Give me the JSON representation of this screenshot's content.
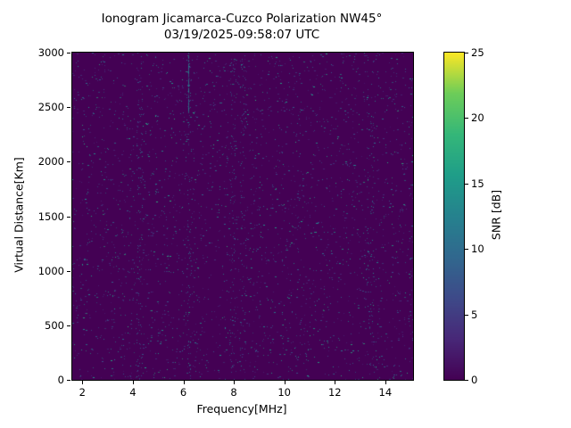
{
  "chart_data": {
    "type": "heatmap",
    "title": "Ionogram Jicamarca-Cuzco Polarization NW45°",
    "subtitle": "03/19/2025-09:58:07 UTC",
    "xlabel": "Frequency[MHz]",
    "ylabel": "Virtual Distance[Km]",
    "xlim": [
      1.6,
      15.1
    ],
    "ylim": [
      0,
      3000
    ],
    "x_ticks": [
      2,
      4,
      6,
      8,
      10,
      12,
      14
    ],
    "y_ticks": [
      0,
      500,
      1000,
      1500,
      2000,
      2500,
      3000
    ],
    "colorbar": {
      "label": "SNR [dB]",
      "ticks": [
        0,
        5,
        10,
        15,
        20,
        25
      ],
      "vmin": 0,
      "vmax": 25
    },
    "colormap": {
      "name": "viridis",
      "stops": [
        {
          "t": 0.0,
          "color": "#440154"
        },
        {
          "t": 0.125,
          "color": "#482878"
        },
        {
          "t": 0.25,
          "color": "#3e4a89"
        },
        {
          "t": 0.375,
          "color": "#31688e"
        },
        {
          "t": 0.5,
          "color": "#26828e"
        },
        {
          "t": 0.625,
          "color": "#1f9e89"
        },
        {
          "t": 0.75,
          "color": "#35b779"
        },
        {
          "t": 0.875,
          "color": "#6dcd59"
        },
        {
          "t": 1.0,
          "color": "#fde725"
        }
      ]
    },
    "background_snr_db": 0,
    "noise": {
      "description": "sparse random speckle noise over dark background",
      "speckle_density": 0.022,
      "snr_range_db": [
        3,
        18
      ],
      "seed": 42
    },
    "features": [
      {
        "type": "vertical-line",
        "x_mhz": 6.2,
        "y_from_km": 2450,
        "y_to_km": 3000,
        "snr_db": 12
      },
      {
        "type": "dense-column",
        "x_mhz": 4.25,
        "count": 110,
        "width_mhz": 0.12,
        "snr_db": 10
      },
      {
        "type": "dense-column",
        "x_mhz": 6.2,
        "count": 95,
        "width_mhz": 0.1,
        "snr_db": 10
      },
      {
        "type": "dense-column",
        "x_mhz": 7.95,
        "count": 85,
        "width_mhz": 0.12,
        "snr_db": 10
      },
      {
        "type": "dense-column",
        "x_mhz": 8.35,
        "count": 70,
        "width_mhz": 0.12,
        "snr_db": 10
      },
      {
        "type": "dense-column",
        "x_mhz": 13.4,
        "count": 85,
        "width_mhz": 0.15,
        "snr_db": 11
      }
    ]
  }
}
